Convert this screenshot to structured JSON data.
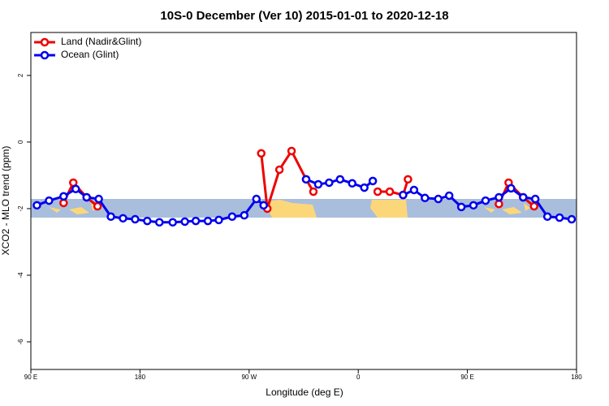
{
  "chart_data": {
    "type": "line",
    "title": "10S-0 December (Ver 10)   2015-01-01 to 2020-12-18",
    "x_label": "Longitude (deg E)",
    "y_label": "XCO2 - MLO trend (ppm)",
    "xlim": [
      90,
      540
    ],
    "ylim": [
      -6.83,
      3.29
    ],
    "xticks": [
      {
        "value": 90,
        "label": "90 E"
      },
      180,
      {
        "value": 270,
        "label": "90 W"
      },
      {
        "value": 360,
        "label": "0"
      },
      {
        "value": 450,
        "label": "90 E"
      },
      {
        "value": 540,
        "label": "180"
      }
    ],
    "yticks": [
      -6,
      -4,
      -2,
      0,
      2
    ],
    "legend": "top-left",
    "series": [
      {
        "name": "Land (Nadir&Glint)",
        "color": "#ee0000",
        "x": [
          117,
          125,
          136,
          145,
          200,
          280,
          285,
          295,
          305,
          317,
          323,
          350,
          376,
          386,
          397,
          401,
          450,
          476,
          484,
          496,
          505
        ],
        "values": [
          -1.83,
          -1.22,
          -1.66,
          -1.93,
          null,
          -0.34,
          -2.0,
          -0.83,
          -0.27,
          -1.12,
          -1.49,
          null,
          -1.49,
          -1.49,
          -1.59,
          -1.12,
          null,
          -1.86,
          -1.22,
          -1.66,
          -1.93
        ]
      },
      {
        "name": "Ocean (Glint)",
        "color": "#0000ee",
        "x": [
          95,
          105,
          117,
          127,
          136,
          146,
          156,
          166,
          176,
          186,
          196,
          207,
          217,
          226,
          236,
          245,
          256,
          266,
          276,
          282,
          300,
          317,
          327,
          336,
          345,
          355,
          365,
          372,
          385,
          397,
          406,
          415,
          426,
          435,
          445,
          455,
          465,
          476,
          486,
          496,
          506,
          516,
          526,
          536
        ],
        "values": [
          -1.9,
          -1.76,
          -1.63,
          -1.41,
          -1.66,
          -1.71,
          -2.24,
          -2.29,
          -2.32,
          -2.37,
          -2.41,
          -2.41,
          -2.39,
          -2.37,
          -2.37,
          -2.34,
          -2.24,
          -2.2,
          -1.71,
          -1.9,
          null,
          -1.12,
          -1.27,
          -1.22,
          -1.12,
          -1.24,
          -1.37,
          -1.17,
          null,
          -1.59,
          -1.44,
          -1.68,
          -1.71,
          -1.61,
          -1.95,
          -1.9,
          -1.76,
          -1.66,
          -1.39,
          -1.66,
          -1.71,
          -2.24,
          -2.27,
          -2.32
        ]
      }
    ]
  }
}
